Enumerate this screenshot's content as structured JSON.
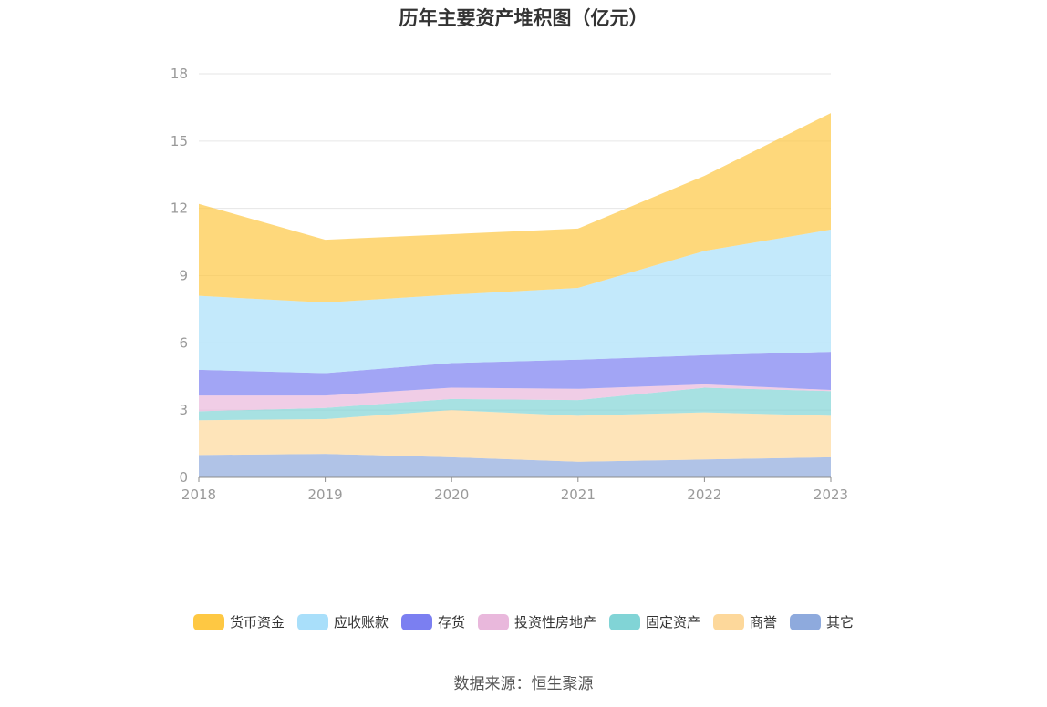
{
  "chart_data": {
    "type": "area",
    "stacked": true,
    "title": "历年主要资产堆积图（亿元）",
    "x": [
      "2018",
      "2019",
      "2020",
      "2021",
      "2022",
      "2023"
    ],
    "y_ticks": [
      "0",
      "3",
      "6",
      "9",
      "12",
      "15",
      "18"
    ],
    "ylim": [
      0,
      18
    ],
    "grid": true,
    "legend_position": "bottom",
    "series": [
      {
        "name": "其它",
        "color": "#8eaadd",
        "values": [
          1.0,
          1.05,
          0.9,
          0.7,
          0.8,
          0.9
        ]
      },
      {
        "name": "商誉",
        "color": "#fdd89b",
        "values": [
          1.55,
          1.55,
          2.1,
          2.05,
          2.1,
          1.85
        ]
      },
      {
        "name": "固定资产",
        "color": "#81d4d6",
        "values": [
          0.4,
          0.5,
          0.5,
          0.7,
          1.1,
          1.1
        ]
      },
      {
        "name": "投资性房地产",
        "color": "#e9b8dc",
        "values": [
          0.7,
          0.55,
          0.5,
          0.5,
          0.15,
          0.05
        ]
      },
      {
        "name": "存货",
        "color": "#7b7ff1",
        "values": [
          1.15,
          1.0,
          1.1,
          1.3,
          1.3,
          1.7
        ]
      },
      {
        "name": "应收账款",
        "color": "#a9dffa",
        "values": [
          3.3,
          3.15,
          3.05,
          3.2,
          4.65,
          5.45
        ]
      },
      {
        "name": "货币资金",
        "color": "#fec843",
        "values": [
          4.1,
          2.8,
          2.7,
          2.65,
          3.35,
          5.2
        ]
      }
    ],
    "legend_order": [
      "货币资金",
      "应收账款",
      "存货",
      "投资性房地产",
      "固定资产",
      "商誉",
      "其它"
    ]
  },
  "source": "数据来源：恒生聚源"
}
